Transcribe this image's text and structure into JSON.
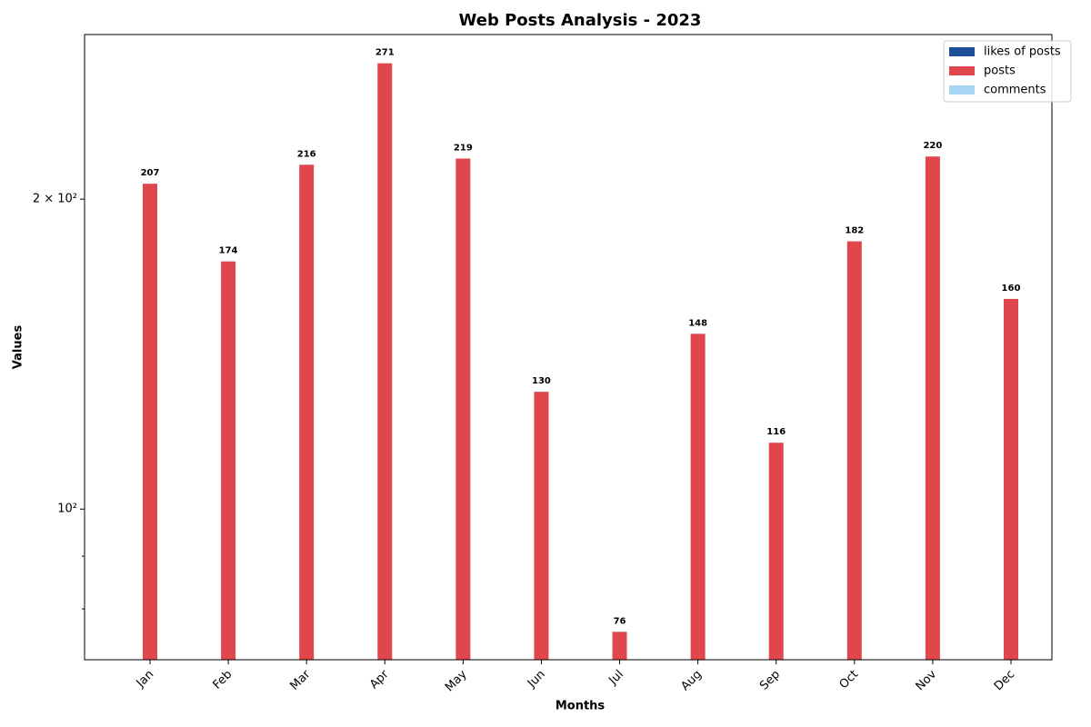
{
  "chart_data": {
    "type": "bar",
    "title": "Web Posts Analysis - 2023",
    "x_label": "Months",
    "y_label": "Values",
    "categories": [
      "Jan",
      "Feb",
      "Mar",
      "Apr",
      "May",
      "Jun",
      "Jul",
      "Aug",
      "Sep",
      "Oct",
      "Nov",
      "Dec"
    ],
    "series": [
      {
        "name": "likes of posts",
        "color": "#1f4e99",
        "values": [
          null,
          null,
          null,
          null,
          null,
          null,
          null,
          null,
          null,
          null,
          null,
          null
        ]
      },
      {
        "name": "posts",
        "color": "#e0474c",
        "values": [
          207,
          174,
          216,
          271,
          219,
          130,
          76,
          148,
          116,
          182,
          220,
          160
        ]
      },
      {
        "name": "comments",
        "color": "#a9d5f5",
        "values": [
          null,
          null,
          null,
          null,
          null,
          null,
          null,
          null,
          null,
          null,
          null,
          null
        ]
      }
    ],
    "log_scale": true,
    "ylim": [
      71.4,
      289
    ],
    "yticks": [
      {
        "value": 100,
        "label": "10²"
      },
      {
        "value": 200,
        "label": "2 × 10²"
      }
    ],
    "yminor": [
      80,
      90
    ],
    "legend": "upper right",
    "grid": false
  }
}
